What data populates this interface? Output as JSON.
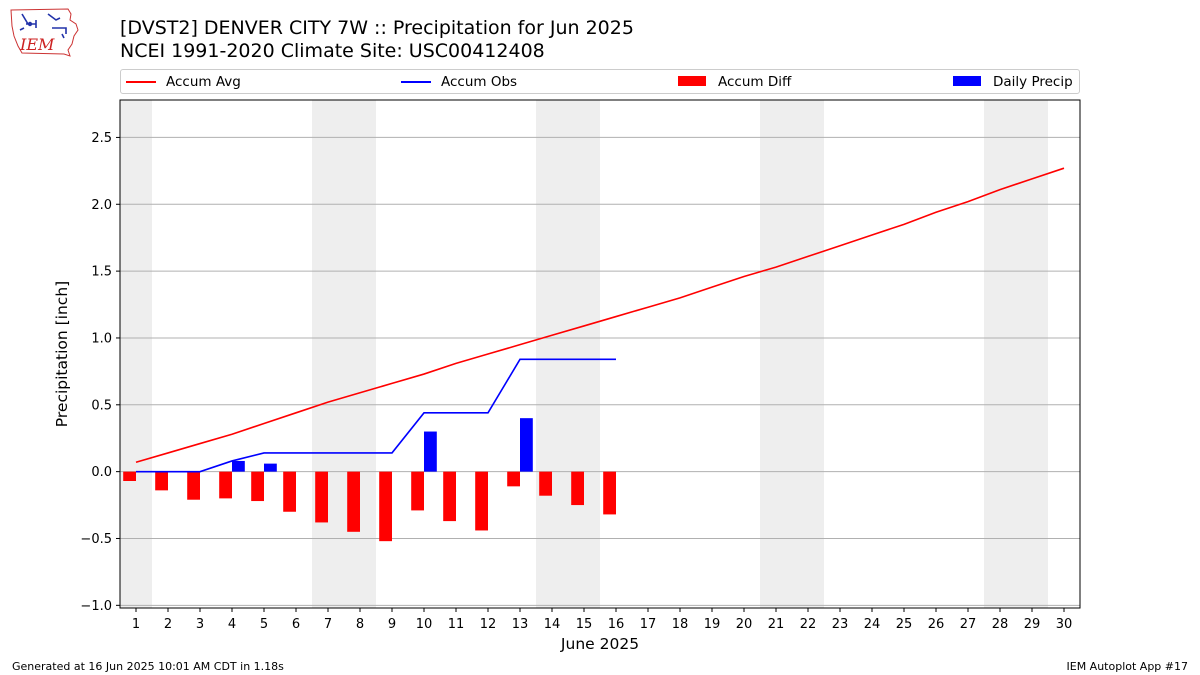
{
  "title": {
    "line1": "[DVST2] DENVER CITY 7W :: Precipitation for Jun 2025",
    "line2": "NCEI 1991-2020 Climate Site: USC00412408"
  },
  "logo": {
    "text": "IEM",
    "icon": "iowa-state-logo-icon"
  },
  "legend": [
    {
      "label": "Accum Avg",
      "kind": "line",
      "color": "#ff0000"
    },
    {
      "label": "Accum Obs",
      "kind": "line",
      "color": "#0000ff"
    },
    {
      "label": "Accum Diff",
      "kind": "patch",
      "color": "#ff0000"
    },
    {
      "label": "Daily Precip",
      "kind": "patch",
      "color": "#0000ff"
    }
  ],
  "footer": {
    "left": "Generated at 16 Jun 2025 10:01 AM CDT in 1.18s",
    "right": "IEM Autoplot App #17"
  },
  "chart_data": {
    "type": "bar",
    "xlabel": "June 2025",
    "ylabel": "Precipitation [inch]",
    "x": [
      1,
      2,
      3,
      4,
      5,
      6,
      7,
      8,
      9,
      10,
      11,
      12,
      13,
      14,
      15,
      16,
      17,
      18,
      19,
      20,
      21,
      22,
      23,
      24,
      25,
      26,
      27,
      28,
      29,
      30
    ],
    "xlim": [
      0.5,
      30.5
    ],
    "ylim": [
      -1.02,
      2.78
    ],
    "yticks": [
      -1.0,
      -0.5,
      0.0,
      0.5,
      1.0,
      1.5,
      2.0,
      2.5
    ],
    "ytick_labels": [
      "−1.0",
      "−0.5",
      "0.0",
      "0.5",
      "1.0",
      "1.5",
      "2.0",
      "2.5"
    ],
    "grid": "y",
    "weekend_shading": [
      [
        0.5,
        1.5
      ],
      [
        6.5,
        8.5
      ],
      [
        13.5,
        15.5
      ],
      [
        20.5,
        22.5
      ],
      [
        27.5,
        29.5
      ]
    ],
    "shading_color": "#eeeeee",
    "series": [
      {
        "name": "Accum Avg",
        "type": "line",
        "color": "#ff0000",
        "x": [
          1,
          2,
          3,
          4,
          5,
          6,
          7,
          8,
          9,
          10,
          11,
          12,
          13,
          14,
          15,
          16,
          17,
          18,
          19,
          20,
          21,
          22,
          23,
          24,
          25,
          26,
          27,
          28,
          29,
          30
        ],
        "values": [
          0.07,
          0.14,
          0.21,
          0.28,
          0.36,
          0.44,
          0.52,
          0.59,
          0.66,
          0.73,
          0.81,
          0.88,
          0.95,
          1.02,
          1.09,
          1.16,
          1.23,
          1.3,
          1.38,
          1.46,
          1.53,
          1.61,
          1.69,
          1.77,
          1.85,
          1.94,
          2.02,
          2.11,
          2.19,
          2.27
        ]
      },
      {
        "name": "Accum Obs",
        "type": "line",
        "color": "#0000ff",
        "x": [
          1,
          2,
          3,
          4,
          5,
          6,
          7,
          8,
          9,
          10,
          11,
          12,
          13,
          14,
          15,
          16
        ],
        "values": [
          0.0,
          0.0,
          0.0,
          0.08,
          0.14,
          0.14,
          0.14,
          0.14,
          0.14,
          0.44,
          0.44,
          0.44,
          0.84,
          0.84,
          0.84,
          0.84
        ]
      },
      {
        "name": "Accum Diff",
        "type": "bar",
        "color": "#ff0000",
        "x": [
          1,
          2,
          3,
          4,
          5,
          6,
          7,
          8,
          9,
          10,
          11,
          12,
          13,
          14,
          15,
          16
        ],
        "values": [
          -0.07,
          -0.14,
          -0.21,
          -0.2,
          -0.22,
          -0.3,
          -0.38,
          -0.45,
          -0.52,
          -0.29,
          -0.37,
          -0.44,
          -0.11,
          -0.18,
          -0.25,
          -0.32
        ]
      },
      {
        "name": "Daily Precip",
        "type": "bar",
        "color": "#0000ff",
        "x": [
          4,
          5,
          10,
          13
        ],
        "values": [
          0.08,
          0.06,
          0.3,
          0.4
        ]
      }
    ]
  }
}
